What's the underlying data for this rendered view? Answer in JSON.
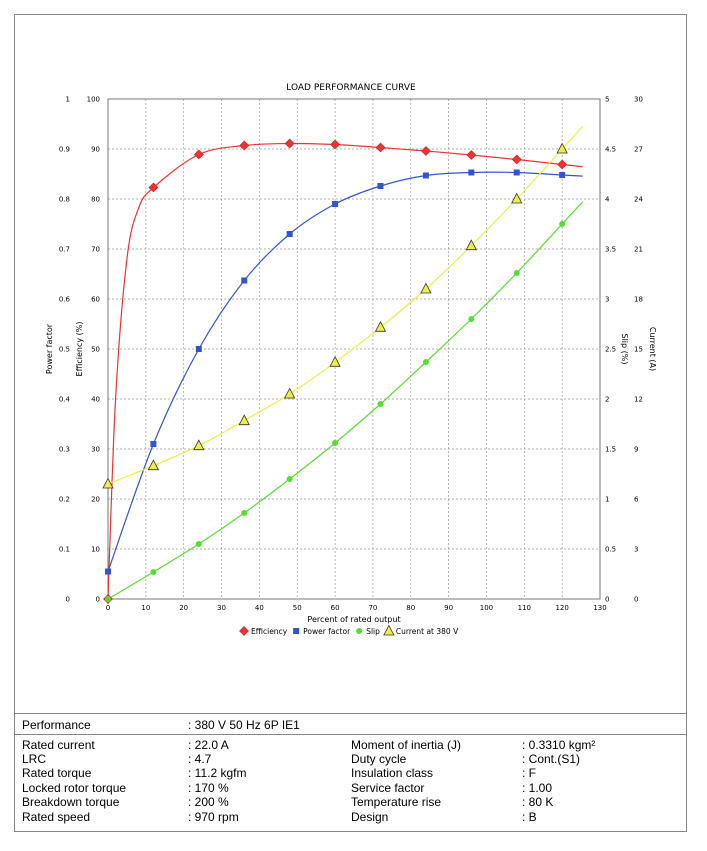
{
  "chart_data": {
    "type": "line",
    "title": "LOAD PERFORMANCE CURVE",
    "xlabel": "Percent of rated output",
    "x_ticks": [
      0,
      10,
      20,
      30,
      40,
      50,
      60,
      70,
      80,
      90,
      100,
      110,
      120,
      130
    ],
    "xlim": [
      0,
      130
    ],
    "axes": {
      "power_factor": {
        "label": "Power factor",
        "ticks": [
          "0",
          "0.1",
          "0.2",
          "0.3",
          "0.4",
          "0.5",
          "0.6",
          "0.7",
          "0.8",
          "0.9",
          "1"
        ],
        "range": [
          0,
          1
        ]
      },
      "efficiency": {
        "label": "Efficiency (%)",
        "ticks": [
          "0",
          "10",
          "20",
          "30",
          "40",
          "50",
          "60",
          "70",
          "80",
          "90",
          "100"
        ],
        "range": [
          0,
          100
        ]
      },
      "slip": {
        "label": "Slip (%)",
        "ticks": [
          "0",
          "0.5",
          "1",
          "1.5",
          "2",
          "2.5",
          "3",
          "3.5",
          "4",
          "4.5",
          "5"
        ],
        "range": [
          0,
          5
        ]
      },
      "current": {
        "label": "Current (A)",
        "ticks": [
          "0",
          "3",
          "6",
          "9",
          "12",
          "15",
          "18",
          "21",
          "24",
          "27",
          "30"
        ],
        "range": [
          0,
          30
        ]
      }
    },
    "series": [
      {
        "name": "Efficiency",
        "axis": "efficiency",
        "color": "#ee3333",
        "marker": "diamond",
        "x": [
          0,
          12,
          24,
          36,
          48,
          60,
          72,
          84,
          96,
          108,
          120
        ],
        "y": [
          0,
          82.3,
          88.9,
          90.7,
          91.1,
          90.9,
          90.3,
          89.6,
          88.8,
          87.9,
          86.9
        ]
      },
      {
        "name": "Power factor",
        "axis": "power_factor",
        "color": "#3355cc",
        "marker": "square",
        "x": [
          0,
          12,
          24,
          36,
          48,
          60,
          72,
          84,
          96,
          108,
          120
        ],
        "y": [
          0.055,
          0.31,
          0.5,
          0.637,
          0.73,
          0.79,
          0.826,
          0.847,
          0.853,
          0.853,
          0.848
        ]
      },
      {
        "name": "Slip",
        "axis": "slip",
        "color": "#55dd33",
        "marker": "circle",
        "x": [
          0,
          12,
          24,
          36,
          48,
          60,
          72,
          84,
          96,
          108,
          120
        ],
        "y": [
          0,
          0.27,
          0.55,
          0.86,
          1.2,
          1.56,
          1.95,
          2.37,
          2.8,
          3.26,
          3.75
        ]
      },
      {
        "name": "Current at 380 V",
        "axis": "current",
        "color": "#eeee44",
        "marker": "triangle",
        "x": [
          0,
          12,
          24,
          36,
          48,
          60,
          72,
          84,
          96,
          108,
          120
        ],
        "y": [
          6.9,
          8.0,
          9.2,
          10.7,
          12.3,
          14.2,
          16.3,
          18.6,
          21.2,
          24.0,
          27.0
        ]
      }
    ],
    "legend_position": "bottom"
  },
  "info": {
    "performance_label": "Performance",
    "performance_value": ": 380 V 50 Hz 6P IE1",
    "left": [
      {
        "label": "Rated current",
        "value": ": 22.0 A"
      },
      {
        "label": "LRC",
        "value": ": 4.7"
      },
      {
        "label": "Rated torque",
        "value": ": 11.2 kgfm"
      },
      {
        "label": "Locked rotor torque",
        "value": ": 170 %"
      },
      {
        "label": "Breakdown torque",
        "value": ": 200 %"
      },
      {
        "label": "Rated speed",
        "value": ": 970 rpm"
      }
    ],
    "right": [
      {
        "label": "Moment of inertia (J)",
        "value": ": 0.3310 kgm²"
      },
      {
        "label": "Duty cycle",
        "value": ": Cont.(S1)"
      },
      {
        "label": "Insulation class",
        "value": ": F"
      },
      {
        "label": "Service factor",
        "value": ": 1.00"
      },
      {
        "label": "Temperature rise",
        "value": ": 80 K"
      },
      {
        "label": "Design",
        "value": ": B"
      }
    ]
  }
}
